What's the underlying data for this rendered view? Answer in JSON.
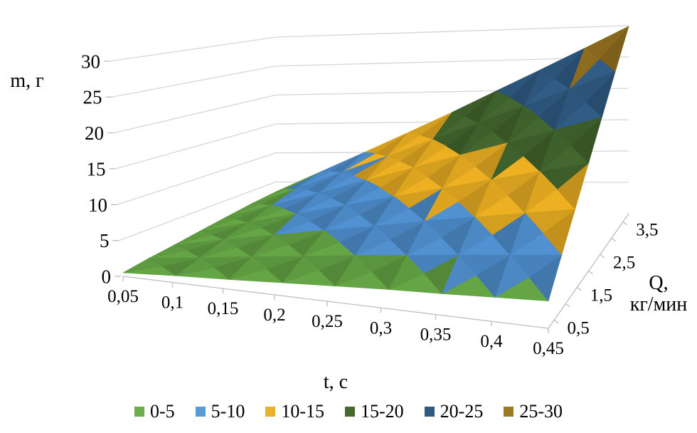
{
  "chart_data": {
    "type": "surface3d",
    "title": "",
    "xlabel": "t, c",
    "ylabel": "m, г",
    "zlabel": "Q, кг/мин",
    "zlabel_lines": [
      "Q,",
      "кг/мин"
    ],
    "x_tick_labels": [
      "0,05",
      "0,1",
      "0,15",
      "0,2",
      "0,25",
      "0,3",
      "0,35",
      "0,4",
      "0,45"
    ],
    "x_values": [
      0.05,
      0.1,
      0.15,
      0.2,
      0.25,
      0.3,
      0.35,
      0.4,
      0.45
    ],
    "y_tick_labels": [
      "0",
      "5",
      "10",
      "15",
      "20",
      "25",
      "30"
    ],
    "y_range": [
      0,
      30
    ],
    "z_tick_labels": [
      "0,5",
      "1,5",
      "2,5",
      "3,5"
    ],
    "z_values": [
      0.5,
      1.0,
      1.5,
      2.0,
      2.5,
      3.0,
      3.5
    ],
    "grid": true,
    "legend_position": "bottom",
    "band_size": 5,
    "series": [
      {
        "q": 0.5,
        "values": [
          0.5,
          1.0,
          1.4,
          1.9,
          2.4,
          2.9,
          3.3,
          3.8,
          4.3
        ]
      },
      {
        "q": 1.0,
        "values": [
          1.0,
          1.9,
          2.9,
          3.8,
          4.8,
          5.7,
          6.7,
          7.6,
          8.6
        ]
      },
      {
        "q": 1.5,
        "values": [
          1.4,
          2.9,
          4.3,
          5.7,
          7.1,
          8.6,
          10.0,
          11.4,
          12.8
        ]
      },
      {
        "q": 2.0,
        "values": [
          1.9,
          3.8,
          5.7,
          7.6,
          9.5,
          11.4,
          13.3,
          15.2,
          17.1
        ]
      },
      {
        "q": 2.5,
        "values": [
          2.4,
          4.8,
          7.1,
          9.5,
          11.9,
          14.3,
          16.6,
          19.0,
          21.4
        ]
      },
      {
        "q": 3.0,
        "values": [
          2.9,
          5.7,
          8.6,
          11.4,
          14.3,
          17.1,
          20.0,
          22.8,
          25.7
        ]
      },
      {
        "q": 3.5,
        "values": [
          3.3,
          6.7,
          10.0,
          13.3,
          16.6,
          20.0,
          23.3,
          26.6,
          29.9
        ]
      }
    ],
    "bands": [
      {
        "label": "0-5",
        "legend_color": "#6CAC4C",
        "surface_color": "#5F9C41"
      },
      {
        "label": "5-10",
        "legend_color": "#5B9BD5",
        "surface_color": "#4C89C6"
      },
      {
        "label": "10-15",
        "legend_color": "#E6B32B",
        "surface_color": "#DFA620"
      },
      {
        "label": "15-20",
        "legend_color": "#47682F",
        "surface_color": "#3F612B"
      },
      {
        "label": "20-25",
        "legend_color": "#31597F",
        "surface_color": "#2E577E"
      },
      {
        "label": "25-30",
        "legend_color": "#9A7A22",
        "surface_color": "#8E6D1E"
      }
    ],
    "colors": {
      "gridline": "#D6D6D6",
      "axis": "#BDBDBD",
      "text": "#000000"
    }
  }
}
